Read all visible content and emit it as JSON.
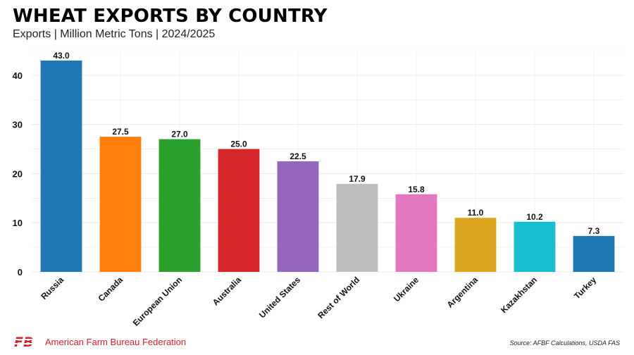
{
  "header": {
    "title": "WHEAT EXPORTS BY COUNTRY",
    "subtitle": "Exports | Million Metric Tons | 2024/2025"
  },
  "footer": {
    "organization": "American Farm Bureau Federation",
    "logo_text": "FB",
    "source": "Source: AFBF Calculations, USDA FAS"
  },
  "colors": {
    "title": "#000000",
    "brand_red": "#d2232a",
    "grid": "#ebebeb"
  },
  "chart_data": {
    "type": "bar",
    "title": "WHEAT EXPORTS BY COUNTRY",
    "subtitle": "Exports | Million Metric Tons | 2024/2025",
    "xlabel": "",
    "ylabel": "",
    "ylim": [
      0,
      45
    ],
    "yticks": [
      0,
      10,
      20,
      30,
      40
    ],
    "grid": true,
    "legend": "none",
    "categories": [
      "Russia",
      "Canada",
      "European Union",
      "Australia",
      "United States",
      "Rest of World",
      "Ukraine",
      "Argentina",
      "Kazakhstan",
      "Turkey"
    ],
    "values": [
      43.0,
      27.5,
      27.0,
      25.0,
      22.5,
      17.9,
      15.8,
      11.0,
      10.2,
      7.3
    ],
    "value_labels": [
      "43.0",
      "27.5",
      "27.0",
      "25.0",
      "22.5",
      "17.9",
      "15.8",
      "11.0",
      "10.2",
      "7.3"
    ],
    "bar_colors": [
      "#1f77b4",
      "#ff7f0e",
      "#2ca02c",
      "#d62728",
      "#9467bd",
      "#bdbdbd",
      "#e377c2",
      "#dba520",
      "#17becf",
      "#1f77b4"
    ]
  }
}
